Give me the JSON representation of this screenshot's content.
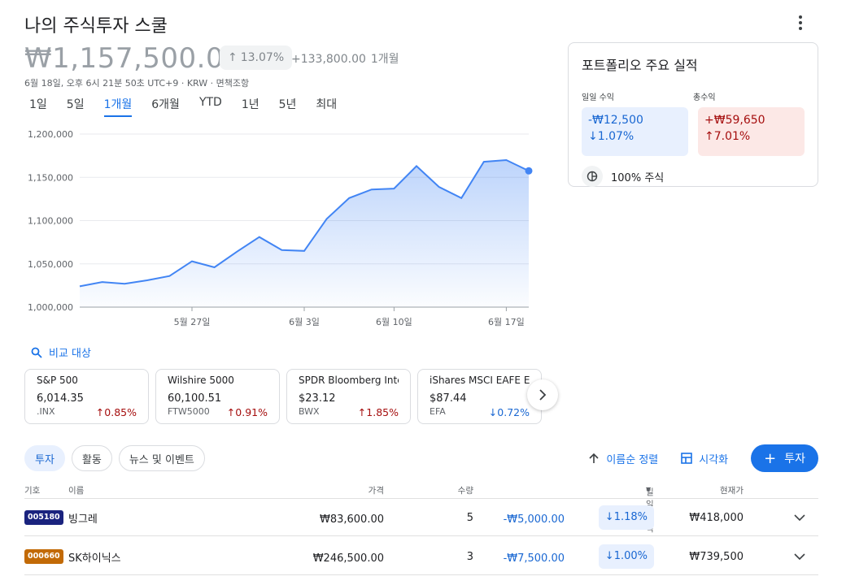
{
  "header": {
    "title": "나의 주식투자 스쿨"
  },
  "summary": {
    "price": "₩1,157,500.00",
    "change_pct": "13.07%",
    "change_abs": "+133,800.00",
    "change_period": "1개월",
    "timestamp": "6월 18일, 오후 6시 21분 50초 UTC+9 · KRW · 면책조항"
  },
  "ranges": [
    "1일",
    "5일",
    "1개월",
    "6개월",
    "YTD",
    "1년",
    "5년",
    "최대"
  ],
  "active_range": "1개월",
  "chart_data": {
    "type": "area",
    "x": [
      "5월 20일",
      "5월 21일",
      "5월 22일",
      "5월 23일",
      "5월 24일",
      "5월 27일",
      "5월 28일",
      "5월 29일",
      "5월 30일",
      "5월 31일",
      "6월 3일",
      "6월 4일",
      "6월 5일",
      "6월 7일",
      "6월 10일",
      "6월 11일",
      "6월 12일",
      "6월 13일",
      "6월 14일",
      "6월 17일",
      "6월 18일"
    ],
    "values": [
      1024000,
      1029000,
      1027000,
      1031000,
      1036000,
      1053000,
      1046000,
      1064000,
      1081000,
      1066000,
      1065000,
      1102000,
      1126000,
      1136000,
      1137000,
      1163000,
      1139000,
      1126000,
      1168000,
      1170000,
      1157500
    ],
    "x_tick_labels": [
      "5월 27일",
      "6월 3일",
      "6월 10일",
      "6월 17일"
    ],
    "y_tick_labels": [
      "1,000,000",
      "1,050,000",
      "1,100,000",
      "1,150,000",
      "1,200,000"
    ],
    "ylim": [
      1000000,
      1200000
    ],
    "grid": true,
    "color": "#4285f4"
  },
  "compare": {
    "label": "비교 대상",
    "icon": "search-icon"
  },
  "compare_cards": [
    {
      "name": "S&P 500",
      "value": "6,014.35",
      "symbol": ".INX",
      "change": "0.85%",
      "dir": "up"
    },
    {
      "name": "Wilshire 5000",
      "value": "60,100.51",
      "symbol": "FTW5000",
      "change": "0.91%",
      "dir": "up"
    },
    {
      "name": "SPDR Bloomberg Intern...",
      "value": "$23.12",
      "symbol": "BWX",
      "change": "1.85%",
      "dir": "up"
    },
    {
      "name": "iShares MSCI EAFE ETF",
      "value": "$87.44",
      "symbol": "EFA",
      "change": "0.72%",
      "dir": "down"
    }
  ],
  "side": {
    "title": "포트폴리오 주요 실적",
    "daily_label": "일일 수익",
    "total_label": "총수익",
    "daily_value": "-₩12,500",
    "daily_pct": "1.07%",
    "total_value": "+₩59,650",
    "total_pct": "7.01%",
    "allocation": "100%",
    "allocation_label": "주식"
  },
  "tabs": [
    "투자",
    "활동",
    "뉴스 및 이벤트"
  ],
  "actions": {
    "sort": "이름순 정렬",
    "visualize": "시각화",
    "invest": "투자"
  },
  "table": {
    "headers": {
      "symbol": "기호",
      "name": "이름",
      "price": "가격",
      "qty": "수량",
      "daily": "일일 수익",
      "value": "현재가"
    },
    "rows": [
      {
        "ticker": "005180",
        "ticker_color": "#1a237e",
        "name": "빙그레",
        "price": "₩83,600.00",
        "qty": "5",
        "daily": "-₩5,000.00",
        "daily_pct": "1.18%",
        "value": "₩418,000"
      },
      {
        "ticker": "000660",
        "ticker_color": "#c26a06",
        "name": "SK하이닉스",
        "price": "₩246,500.00",
        "qty": "3",
        "daily": "-₩7,500.00",
        "daily_pct": "1.00%",
        "value": "₩739,500"
      }
    ]
  }
}
